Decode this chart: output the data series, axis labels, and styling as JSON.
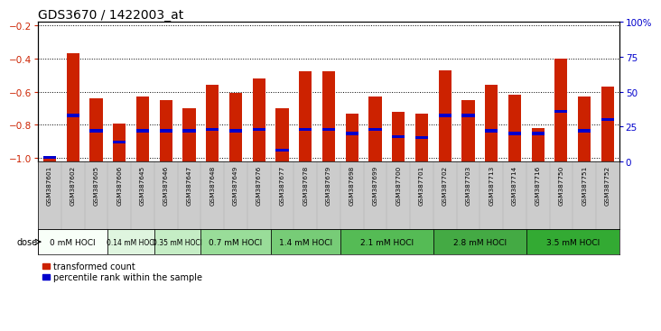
{
  "title": "GDS3670 / 1422003_at",
  "samples": [
    "GSM387601",
    "GSM387602",
    "GSM387605",
    "GSM387606",
    "GSM387645",
    "GSM387646",
    "GSM387647",
    "GSM387648",
    "GSM387649",
    "GSM387676",
    "GSM387677",
    "GSM387678",
    "GSM387679",
    "GSM387698",
    "GSM387699",
    "GSM387700",
    "GSM387701",
    "GSM387702",
    "GSM387703",
    "GSM387713",
    "GSM387714",
    "GSM387716",
    "GSM387750",
    "GSM387751",
    "GSM387752"
  ],
  "red_values": [
    -1.0,
    -0.37,
    -0.64,
    -0.79,
    -0.63,
    -0.65,
    -0.7,
    -0.56,
    -0.61,
    -0.52,
    -0.7,
    -0.48,
    -0.48,
    -0.73,
    -0.63,
    -0.72,
    -0.73,
    -0.47,
    -0.65,
    -0.56,
    -0.62,
    -0.82,
    -0.4,
    -0.63,
    -0.57
  ],
  "blue_percentile": [
    3,
    33,
    22,
    14,
    22,
    22,
    22,
    23,
    22,
    23,
    8,
    23,
    23,
    20,
    23,
    18,
    17,
    33,
    33,
    22,
    20,
    20,
    36,
    22,
    30
  ],
  "dose_groups": [
    {
      "label": "0 mM HOCl",
      "start": 0,
      "end": 3,
      "color": "#f5fff5"
    },
    {
      "label": "0.14 mM HOCl",
      "start": 3,
      "end": 5,
      "color": "#e0f8e0"
    },
    {
      "label": "0.35 mM HOCl",
      "start": 5,
      "end": 7,
      "color": "#c8f0c8"
    },
    {
      "label": "0.7 mM HOCl",
      "start": 7,
      "end": 10,
      "color": "#a8e8a8"
    },
    {
      "label": "1.4 mM HOCl",
      "start": 10,
      "end": 13,
      "color": "#88dd88"
    },
    {
      "label": "2.1 mM HOCl",
      "start": 13,
      "end": 17,
      "color": "#66cc66"
    },
    {
      "label": "2.8 mM HOCl",
      "start": 17,
      "end": 21,
      "color": "#44bb44"
    },
    {
      "label": "3.5 mM HOCl",
      "start": 21,
      "end": 25,
      "color": "#22aa22"
    }
  ],
  "ylim_left": [
    -1.02,
    -0.18
  ],
  "ylim_right": [
    0,
    100
  ],
  "yticks_left": [
    -1.0,
    -0.8,
    -0.6,
    -0.4,
    -0.2
  ],
  "yticks_right": [
    0,
    25,
    50,
    75,
    100
  ],
  "bar_color": "#cc2200",
  "blue_color": "#0000cc",
  "bg_color": "#ffffff",
  "plot_bg": "#ffffff",
  "grid_color": "#000000",
  "title_color": "#000000",
  "left_tick_color": "#cc2200",
  "right_tick_color": "#0000cc",
  "bar_width": 0.55
}
